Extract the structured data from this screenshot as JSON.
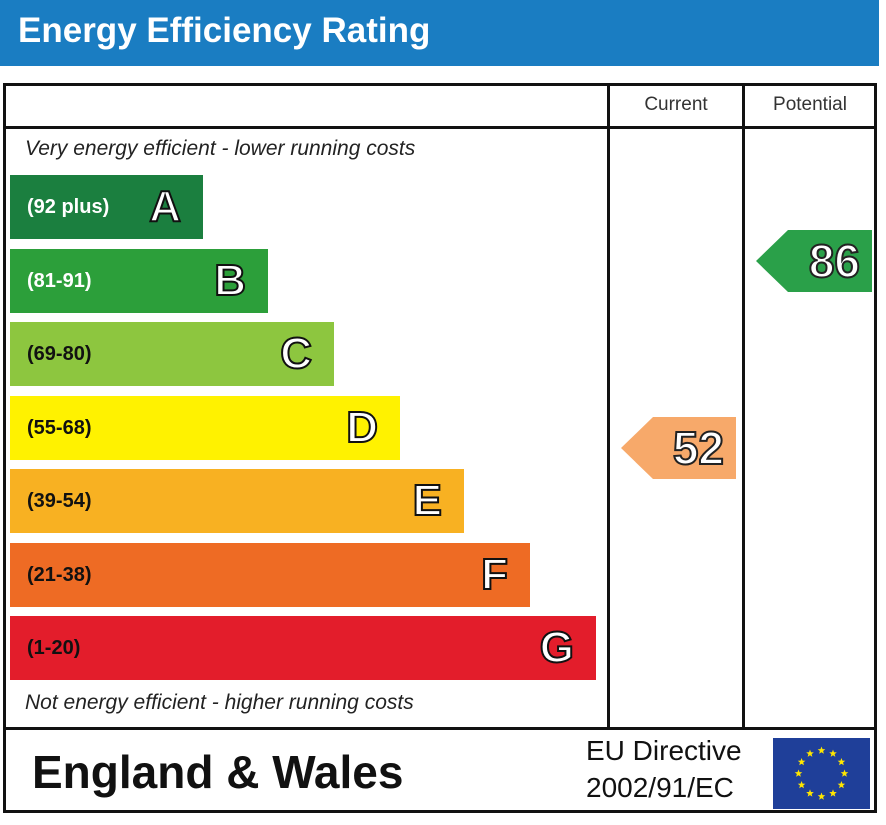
{
  "title": "Energy Efficiency Rating",
  "columns": {
    "current": "Current",
    "potential": "Potential"
  },
  "captions": {
    "top": "Very energy efficient - lower running costs",
    "bottom": "Not energy efficient - higher running costs"
  },
  "chart_data": {
    "type": "bar",
    "title": "Energy Efficiency Rating",
    "bands": [
      {
        "letter": "A",
        "range": "(92 plus)",
        "min": 92,
        "max": 100,
        "color": "#1b7f3f"
      },
      {
        "letter": "B",
        "range": "(81-91)",
        "min": 81,
        "max": 91,
        "color": "#2c9f3a"
      },
      {
        "letter": "C",
        "range": "(69-80)",
        "min": 69,
        "max": 80,
        "color": "#8dc63f"
      },
      {
        "letter": "D",
        "range": "(55-68)",
        "min": 55,
        "max": 68,
        "color": "#fff200"
      },
      {
        "letter": "E",
        "range": "(39-54)",
        "min": 39,
        "max": 54,
        "color": "#f8b122"
      },
      {
        "letter": "F",
        "range": "(21-38)",
        "min": 21,
        "max": 38,
        "color": "#ee6b24"
      },
      {
        "letter": "G",
        "range": "(1-20)",
        "min": 1,
        "max": 20,
        "color": "#e31d2b"
      }
    ],
    "current": {
      "value": 52,
      "band": "E",
      "color": "#f7a96a"
    },
    "potential": {
      "value": 86,
      "band": "B",
      "color": "#2aa049"
    }
  },
  "footer": {
    "country": "England & Wales",
    "directive_line1": "EU Directive",
    "directive_line2": "2002/91/EC"
  }
}
